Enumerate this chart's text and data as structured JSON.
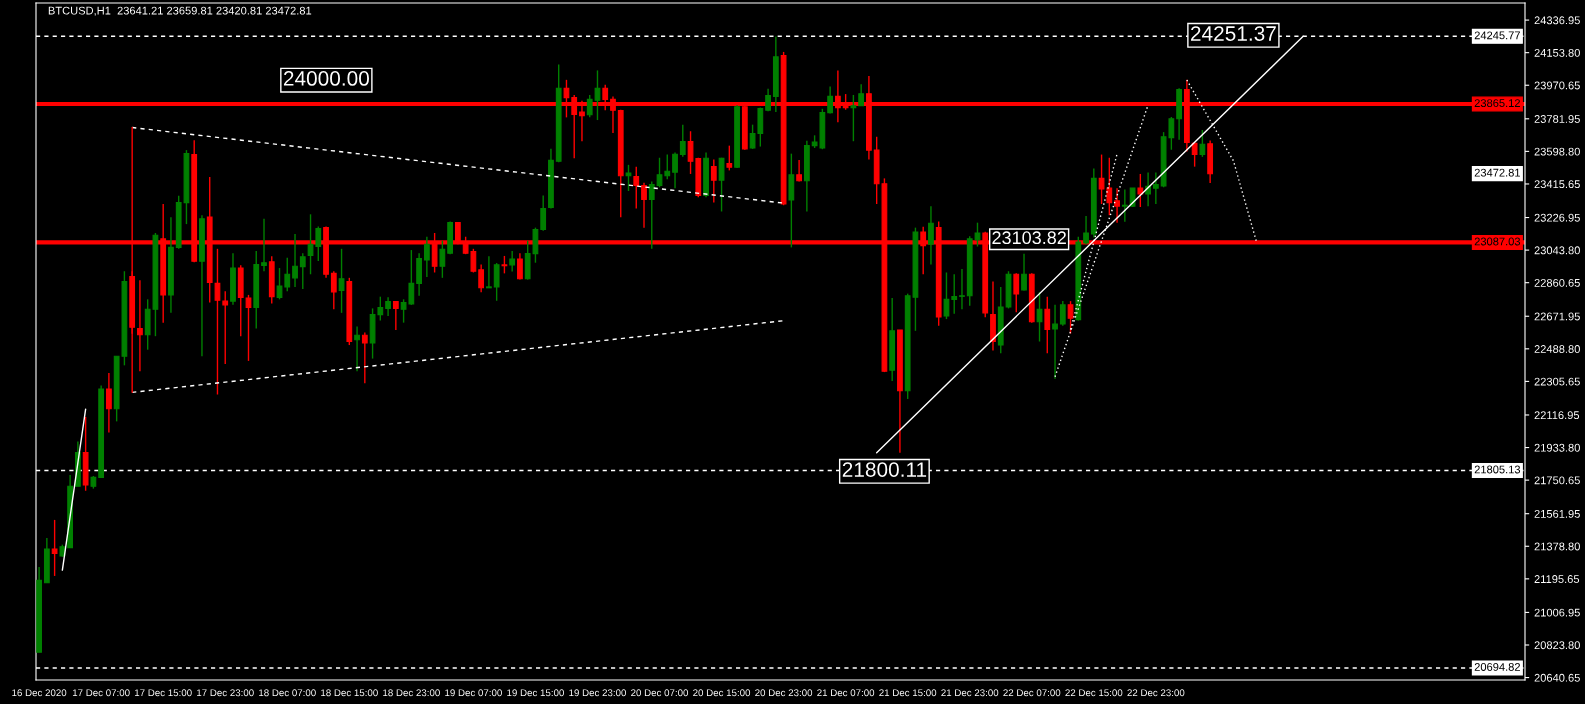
{
  "chart_data": {
    "type": "candlestick",
    "title": "BTCUSD,H1  23641.21 23659.81 23420.81 23472.81",
    "colors": [
      "#008000",
      "#008000",
      "#ff0000",
      "#008000",
      "#008000",
      "#008000",
      "#ff0000",
      "#008000",
      "#008000",
      "#ff0000",
      "#008000",
      "#008000",
      "#ff0000",
      "#ff0000",
      "#008000",
      "#008000",
      "#ff0000",
      "#008000",
      "#008000",
      "#008000",
      "#ff0000",
      "#008000",
      "#ff0000",
      "#ff0000",
      "#ff0000",
      "#008000",
      "#ff0000",
      "#ff0000",
      "#008000",
      "#008000",
      "#ff0000",
      "#008000",
      "#008000",
      "#008000",
      "#008000",
      "#008000",
      "#008000",
      "#ff0000",
      "#ff0000",
      "#008000",
      "#ff0000",
      "#008000",
      "#ff0000",
      "#008000",
      "#008000",
      "#008000",
      "#ff0000",
      "#008000",
      "#008000",
      "#008000",
      "#008000",
      "#ff0000",
      "#008000",
      "#008000",
      "#ff0000",
      "#ff0000",
      "#ff0000",
      "#ff0000",
      "#008000",
      "#008000",
      "#ff0000",
      "#008000",
      "#ff0000",
      "#008000",
      "#008000",
      "#008000",
      "#008000",
      "#008000",
      "#ff0000",
      "#ff0000",
      "#ff0000",
      "#008000",
      "#008000",
      "#ff0000",
      "#ff0000",
      "#ff0000",
      "#008000",
      "#ff0000",
      "#ff0000",
      "#008000",
      "#008000",
      "#008000",
      "#008000",
      "#008000",
      "#ff0000",
      "#ff0000",
      "#008000",
      "#ff0000",
      "#008000",
      "#ff0000",
      "#008000",
      "#ff0000",
      "#008000",
      "#008000",
      "#008000",
      "#008000",
      "#ff0000",
      "#008000",
      "#ff0000",
      "#008000",
      "#008000",
      "#008000",
      "#008000",
      "#ff0000",
      "#ff0000",
      "#008000",
      "#008000",
      "#ff0000",
      "#ff0000",
      "#ff0000",
      "#008000",
      "#ff0000",
      "#008000",
      "#008000",
      "#ff0000",
      "#008000",
      "#ff0000",
      "#008000",
      "#008000",
      "#008000",
      "#008000",
      "#008000",
      "#ff0000",
      "#ff0000",
      "#008000",
      "#008000",
      "#ff0000",
      "#008000",
      "#ff0000",
      "#008000",
      "#ff0000",
      "#008000",
      "#008000",
      "#ff0000",
      "#008000",
      "#008000",
      "#008000",
      "#ff0000",
      "#ff0000",
      "#ff0000",
      "#008000",
      "#008000",
      "#ff0000",
      "#008000",
      "#008000",
      "#008000",
      "#008000",
      "#008000",
      "#ff0000",
      "#ff0000",
      "#008000",
      "#ff0000"
    ],
    "x": [
      "2020-12-16T23:00",
      "2020-12-17T00:00",
      "2020-12-17T01:00",
      "2020-12-17T02:00",
      "2020-12-17T03:00",
      "2020-12-17T04:00",
      "2020-12-17T05:00",
      "2020-12-17T06:00",
      "2020-12-17T07:00",
      "2020-12-17T08:00",
      "2020-12-17T09:00",
      "2020-12-17T10:00",
      "2020-12-17T11:00",
      "2020-12-17T12:00",
      "2020-12-17T13:00",
      "2020-12-17T14:00",
      "2020-12-17T15:00",
      "2020-12-17T16:00",
      "2020-12-17T17:00",
      "2020-12-17T18:00",
      "2020-12-17T19:00",
      "2020-12-17T20:00",
      "2020-12-17T21:00",
      "2020-12-17T22:00",
      "2020-12-17T23:00",
      "2020-12-18T00:00",
      "2020-12-18T01:00",
      "2020-12-18T02:00",
      "2020-12-18T03:00",
      "2020-12-18T04:00",
      "2020-12-18T05:00",
      "2020-12-18T06:00",
      "2020-12-18T07:00",
      "2020-12-18T08:00",
      "2020-12-18T09:00",
      "2020-12-18T10:00",
      "2020-12-18T11:00",
      "2020-12-18T12:00",
      "2020-12-18T13:00",
      "2020-12-18T14:00",
      "2020-12-18T15:00",
      "2020-12-18T16:00",
      "2020-12-18T17:00",
      "2020-12-18T18:00",
      "2020-12-18T19:00",
      "2020-12-18T20:00",
      "2020-12-18T21:00",
      "2020-12-18T22:00",
      "2020-12-18T23:00",
      "2020-12-19T00:00",
      "2020-12-19T01:00",
      "2020-12-19T02:00",
      "2020-12-19T03:00",
      "2020-12-19T04:00",
      "2020-12-19T05:00",
      "2020-12-19T06:00",
      "2020-12-19T07:00",
      "2020-12-19T08:00",
      "2020-12-19T09:00",
      "2020-12-19T10:00",
      "2020-12-19T11:00",
      "2020-12-19T12:00",
      "2020-12-19T13:00",
      "2020-12-19T14:00",
      "2020-12-19T15:00",
      "2020-12-19T16:00",
      "2020-12-19T17:00",
      "2020-12-19T18:00",
      "2020-12-19T19:00",
      "2020-12-19T20:00",
      "2020-12-19T21:00",
      "2020-12-19T22:00",
      "2020-12-19T23:00",
      "2020-12-20T00:00",
      "2020-12-20T01:00",
      "2020-12-20T02:00",
      "2020-12-20T03:00",
      "2020-12-20T04:00",
      "2020-12-20T05:00",
      "2020-12-20T06:00",
      "2020-12-20T07:00",
      "2020-12-20T08:00",
      "2020-12-20T09:00",
      "2020-12-20T10:00",
      "2020-12-20T11:00",
      "2020-12-20T12:00",
      "2020-12-20T13:00",
      "2020-12-20T14:00",
      "2020-12-20T15:00",
      "2020-12-20T16:00",
      "2020-12-20T17:00",
      "2020-12-20T18:00",
      "2020-12-20T19:00",
      "2020-12-20T20:00",
      "2020-12-20T21:00",
      "2020-12-20T22:00",
      "2020-12-20T23:00",
      "2020-12-21T00:00",
      "2020-12-21T01:00",
      "2020-12-21T02:00",
      "2020-12-21T03:00",
      "2020-12-21T04:00",
      "2020-12-21T05:00",
      "2020-12-21T06:00",
      "2020-12-21T07:00",
      "2020-12-21T08:00",
      "2020-12-21T09:00",
      "2020-12-21T10:00",
      "2020-12-21T11:00",
      "2020-12-21T12:00",
      "2020-12-21T13:00",
      "2020-12-21T14:00",
      "2020-12-21T15:00",
      "2020-12-21T16:00",
      "2020-12-21T17:00",
      "2020-12-21T18:00",
      "2020-12-21T19:00",
      "2020-12-21T20:00",
      "2020-12-21T21:00",
      "2020-12-21T22:00",
      "2020-12-21T23:00",
      "2020-12-22T00:00",
      "2020-12-22T01:00",
      "2020-12-22T02:00",
      "2020-12-22T03:00",
      "2020-12-22T04:00",
      "2020-12-22T05:00",
      "2020-12-22T06:00",
      "2020-12-22T07:00",
      "2020-12-22T08:00",
      "2020-12-22T09:00",
      "2020-12-22T10:00",
      "2020-12-22T11:00",
      "2020-12-22T12:00",
      "2020-12-22T13:00",
      "2020-12-22T14:00",
      "2020-12-22T15:00",
      "2020-12-22T16:00",
      "2020-12-22T17:00",
      "2020-12-22T18:00",
      "2020-12-22T19:00",
      "2020-12-22T20:00",
      "2020-12-22T21:00",
      "2020-12-22T22:00",
      "2020-12-22T23:00",
      "2020-12-23T00:00",
      "2020-12-23T01:00",
      "2020-12-23T02:00",
      "2020-12-23T03:00",
      "2020-12-23T04:00",
      "2020-12-23T05:00",
      "2020-12-23T06:00"
    ],
    "ohlc": [
      [
        20783,
        21262,
        20783,
        21187
      ],
      [
        21174,
        21426,
        21174,
        21363
      ],
      [
        21363,
        21527,
        21212,
        21338
      ],
      [
        21325,
        21388,
        21320,
        21376
      ],
      [
        21371,
        21779,
        21371,
        21716
      ],
      [
        21716,
        21968,
        21716,
        21905
      ],
      [
        21905,
        22106,
        21691,
        21723
      ],
      [
        21716,
        21774,
        21703,
        21766
      ],
      [
        21766,
        22283,
        21766,
        22263
      ],
      [
        22263,
        22353,
        22018,
        22152
      ],
      [
        22152,
        22447,
        22081,
        22447
      ],
      [
        22447,
        22925,
        22396,
        22867
      ],
      [
        22895,
        22925,
        22573,
        22610
      ],
      [
        22603,
        22875,
        22363,
        22568
      ],
      [
        22568,
        22767,
        22484,
        22711
      ],
      [
        22711,
        23140,
        22560,
        23127
      ],
      [
        23107,
        23303,
        22636,
        22792
      ],
      [
        22792,
        23228,
        22691,
        23059
      ],
      [
        23059,
        23349,
        23051,
        23311
      ],
      [
        23311,
        23606,
        23190,
        23586
      ],
      [
        23581,
        23661,
        22976,
        22981
      ],
      [
        22981,
        23240,
        22447,
        23220
      ],
      [
        23230,
        23455,
        22749,
        22862
      ],
      [
        22857,
        23051,
        22232,
        22762
      ],
      [
        22757,
        22812,
        22404,
        22736
      ],
      [
        22757,
        23026,
        22736,
        22943
      ],
      [
        22943,
        22958,
        22560,
        22777
      ],
      [
        22774,
        22792,
        22421,
        22721
      ],
      [
        22721,
        23039,
        22603,
        22963
      ],
      [
        22958,
        23220,
        22925,
        22973
      ],
      [
        22978,
        23009,
        22744,
        22782
      ],
      [
        22777,
        22943,
        22767,
        22842
      ],
      [
        22837,
        23001,
        22812,
        22908
      ],
      [
        22888,
        23135,
        22837,
        22953
      ],
      [
        22951,
        23026,
        22825,
        23006
      ],
      [
        23014,
        23245,
        22908,
        23077
      ],
      [
        23064,
        23177,
        22983,
        23165
      ],
      [
        23170,
        23177,
        22888,
        22908
      ],
      [
        22913,
        22925,
        22711,
        22809
      ],
      [
        22817,
        23051,
        22691,
        22883
      ],
      [
        22867,
        22888,
        22510,
        22530
      ],
      [
        22540,
        22615,
        22363,
        22565
      ],
      [
        22565,
        22580,
        22295,
        22522
      ],
      [
        22522,
        22716,
        22434,
        22681
      ],
      [
        22681,
        22782,
        22648,
        22721
      ],
      [
        22716,
        22779,
        22673,
        22754
      ],
      [
        22754,
        22757,
        22595,
        22716
      ],
      [
        22711,
        22767,
        22636,
        22749
      ],
      [
        22741,
        23044,
        22736,
        22857
      ],
      [
        22857,
        23026,
        22787,
        22996
      ],
      [
        22988,
        23119,
        22893,
        23077
      ],
      [
        23084,
        23140,
        22918,
        22953
      ],
      [
        22953,
        23097,
        22888,
        23049
      ],
      [
        23026,
        23205,
        23021,
        23198
      ],
      [
        23198,
        23198,
        23077,
        23089
      ],
      [
        23089,
        23119,
        23021,
        23026
      ],
      [
        23036,
        23051,
        22918,
        22925
      ],
      [
        22933,
        22963,
        22807,
        22832
      ],
      [
        22832,
        23009,
        22832,
        22837
      ],
      [
        22837,
        22971,
        22759,
        22961
      ],
      [
        22961,
        23011,
        22913,
        22956
      ],
      [
        22961,
        23039,
        22923,
        22993
      ],
      [
        22993,
        23026,
        22878,
        22883
      ],
      [
        22883,
        23097,
        22878,
        23024
      ],
      [
        23024,
        23170,
        22973,
        23160
      ],
      [
        23160,
        23351,
        23152,
        23278
      ],
      [
        23283,
        23613,
        23278,
        23548
      ],
      [
        23543,
        24087,
        23538,
        23954
      ],
      [
        23954,
        24001,
        23790,
        23901
      ],
      [
        23901,
        23916,
        23560,
        23807
      ],
      [
        23820,
        23883,
        23656,
        23800
      ],
      [
        23805,
        23916,
        23790,
        23891
      ],
      [
        23886,
        24054,
        23775,
        23954
      ],
      [
        23954,
        23974,
        23830,
        23891
      ],
      [
        23891,
        23908,
        23702,
        23830
      ],
      [
        23828,
        23833,
        23228,
        23462
      ],
      [
        23462,
        23523,
        23376,
        23477
      ],
      [
        23457,
        23513,
        23278,
        23407
      ],
      [
        23407,
        23422,
        23170,
        23329
      ],
      [
        23329,
        23429,
        23051,
        23412
      ],
      [
        23407,
        23563,
        23397,
        23467
      ],
      [
        23462,
        23581,
        23442,
        23487
      ],
      [
        23482,
        23593,
        23392,
        23583
      ],
      [
        23581,
        23749,
        23568,
        23654
      ],
      [
        23654,
        23712,
        23472,
        23543
      ],
      [
        23558,
        23563,
        23341,
        23351
      ],
      [
        23351,
        23593,
        23341,
        23560
      ],
      [
        23513,
        23553,
        23311,
        23437
      ],
      [
        23437,
        23563,
        23261,
        23560
      ],
      [
        23530,
        23631,
        23492,
        23510
      ],
      [
        23510,
        23858,
        23505,
        23850
      ],
      [
        23850,
        23855,
        23608,
        23613
      ],
      [
        23618,
        23749,
        23613,
        23699
      ],
      [
        23699,
        23845,
        23626,
        23840
      ],
      [
        23830,
        23951,
        23825,
        23913
      ],
      [
        23908,
        24245,
        23820,
        24130
      ],
      [
        24138,
        24158,
        23296,
        23303
      ],
      [
        23326,
        23586,
        23059,
        23467
      ],
      [
        23467,
        23550,
        23429,
        23434
      ],
      [
        23434,
        23659,
        23261,
        23631
      ],
      [
        23631,
        23689,
        23618,
        23651
      ],
      [
        23618,
        23838,
        23611,
        23817
      ],
      [
        23817,
        23964,
        23812,
        23908
      ],
      [
        23908,
        24054,
        23762,
        23845
      ],
      [
        23855,
        23921,
        23833,
        23845
      ],
      [
        23845,
        23916,
        23656,
        23855
      ],
      [
        23855,
        23976,
        23855,
        23923
      ],
      [
        23923,
        24022,
        23553,
        23606
      ],
      [
        23606,
        23681,
        23303,
        23417
      ],
      [
        23417,
        23447,
        22358,
        22363
      ],
      [
        22368,
        22774,
        22308,
        22590
      ],
      [
        22595,
        22595,
        21905,
        22253
      ],
      [
        22253,
        22799,
        22207,
        22787
      ],
      [
        22779,
        23170,
        22590,
        23145
      ],
      [
        23145,
        23175,
        22908,
        23069
      ],
      [
        23077,
        23291,
        22963,
        23195
      ],
      [
        23170,
        23205,
        22618,
        22668
      ],
      [
        22673,
        22918,
        22656,
        22767
      ],
      [
        22767,
        22908,
        22686,
        22782
      ],
      [
        22784,
        22938,
        22711,
        22787
      ],
      [
        22787,
        23122,
        22731,
        23107
      ],
      [
        23102,
        23198,
        23064,
        23140
      ],
      [
        23140,
        23147,
        22666,
        22691
      ],
      [
        22681,
        22867,
        22479,
        22530
      ],
      [
        22510,
        22837,
        22464,
        22724
      ],
      [
        22724,
        22925,
        22716,
        22908
      ],
      [
        22908,
        22913,
        22694,
        22797
      ],
      [
        22820,
        23024,
        22817,
        22908
      ],
      [
        22908,
        22913,
        22636,
        22641
      ],
      [
        22641,
        22807,
        22530,
        22711
      ],
      [
        22711,
        22782,
        22464,
        22598
      ],
      [
        22600,
        22736,
        22321,
        22628
      ],
      [
        22628,
        22757,
        22618,
        22736
      ],
      [
        22736,
        22757,
        22575,
        22661
      ],
      [
        22653,
        23119,
        22648,
        23089
      ],
      [
        23084,
        23235,
        23077,
        23140
      ],
      [
        23135,
        23502,
        23114,
        23447
      ],
      [
        23447,
        23581,
        23303,
        23387
      ],
      [
        23392,
        23563,
        23240,
        23311
      ],
      [
        23321,
        23392,
        23198,
        23291
      ],
      [
        23291,
        23384,
        23203,
        23296
      ],
      [
        23291,
        23392,
        23286,
        23392
      ],
      [
        23392,
        23472,
        23286,
        23359
      ],
      [
        23359,
        23480,
        23291,
        23402
      ],
      [
        23392,
        23480,
        23303,
        23412
      ],
      [
        23404,
        23707,
        23397,
        23681
      ],
      [
        23676,
        23792,
        23608,
        23782
      ],
      [
        23782,
        23954,
        23664,
        23946
      ],
      [
        23946,
        24001,
        23598,
        23649
      ],
      [
        23644,
        23649,
        23513,
        23581
      ],
      [
        23581,
        23719,
        23568,
        23639
      ],
      [
        23641.21,
        23659.81,
        23420.81,
        23472.81
      ]
    ],
    "series": [
      {
        "type": "line",
        "color": "#ffffff",
        "line_style": "solid",
        "x": [
          "2020-12-21T11:00",
          "2020-12-23T18:00"
        ],
        "values": [
          21905,
          24246
        ]
      },
      {
        "type": "line",
        "color": "#ffffff",
        "line_style": "dashed",
        "x": [
          "2020-12-17T11:00",
          "2020-12-20T23:00"
        ],
        "values": [
          23733,
          23308
        ]
      },
      {
        "type": "line",
        "color": "#ffffff",
        "line_style": "dashed",
        "x": [
          "2020-12-17T11:00",
          "2020-12-20T23:00"
        ],
        "values": [
          22244,
          22647
        ]
      },
      {
        "type": "line",
        "color": "#ff0000",
        "line_style": "solid",
        "x": [
          "2020-12-17T11:00",
          "2020-12-17T11:00"
        ],
        "values": [
          22244,
          23733
        ]
      },
      {
        "type": "line",
        "color": "#ffffff",
        "line_style": "dotted",
        "x": [
          "2020-12-22T10:00",
          "2020-12-22T22:00"
        ],
        "values": [
          22332,
          23860
        ]
      },
      {
        "type": "line",
        "color": "#ffffff",
        "line_style": "dotted",
        "x": [
          "2020-12-22T12:00",
          "2020-12-22T18:00"
        ],
        "values": [
          22597,
          23584
        ]
      },
      {
        "type": "line",
        "color": "#ffffff",
        "line_style": "dotted",
        "x": [
          "2020-12-23T03:00",
          "2020-12-23T09:00",
          "2020-12-23T12:00"
        ],
        "values": [
          24000,
          23546,
          23087
        ]
      },
      {
        "type": "line",
        "color": "#ffffff",
        "line_style": "solid",
        "x": [
          "2020-12-17T02:00",
          "2020-12-17T05:00"
        ],
        "values": [
          21245,
          22150
        ]
      }
    ],
    "ref_lines": [
      {
        "axis": "y",
        "value": 24245.77,
        "label": "24245.77",
        "color": "#ffffff",
        "line_style": "dashed"
      },
      {
        "axis": "y",
        "value": 23865.12,
        "label": "23865.12",
        "color": "#ff0000",
        "line_style": "solid"
      },
      {
        "axis": "y",
        "value": 23087.03,
        "label": "23087.03",
        "color": "#ff0000",
        "line_style": "solid"
      },
      {
        "axis": "y",
        "value": 21805.13,
        "label": "21805.13",
        "color": "#ffffff",
        "line_style": "dashed"
      },
      {
        "axis": "y",
        "value": 20694.82,
        "label": "20694.82",
        "color": "#ffffff",
        "line_style": "dashed"
      }
    ],
    "annotations": [
      "24000.00",
      {
        "text": "24251.37",
        "x": "2020-12-23T09:00",
        "y": 24251.37
      },
      "23103.82",
      {
        "text": "21800.11",
        "x": "2020-12-21T12:00",
        "y": 21800.11
      },
      "23472.81"
    ],
    "xlim": [
      "2020-12-16T22:36",
      "2020-12-24T22:36"
    ],
    "xticks": [
      {
        "value": "2020-12-16T23:00",
        "label": "16 Dec 2020"
      },
      {
        "value": "2020-12-17T07:00",
        "label": "17 Dec 07:00"
      },
      {
        "value": "2020-12-17T15:00",
        "label": "17 Dec 15:00"
      },
      {
        "value": "2020-12-17T23:00",
        "label": "17 Dec 23:00"
      },
      {
        "value": "2020-12-18T07:00",
        "label": "18 Dec 07:00"
      },
      {
        "value": "2020-12-18T15:00",
        "label": "18 Dec 15:00"
      },
      {
        "value": "2020-12-18T23:00",
        "label": "18 Dec 23:00"
      },
      {
        "value": "2020-12-19T07:00",
        "label": "19 Dec 07:00"
      },
      {
        "value": "2020-12-19T15:00",
        "label": "19 Dec 15:00"
      },
      {
        "value": "2020-12-19T23:00",
        "label": "19 Dec 23:00"
      },
      {
        "value": "2020-12-20T07:00",
        "label": "20 Dec 07:00"
      },
      {
        "value": "2020-12-20T15:00",
        "label": "20 Dec 15:00"
      },
      {
        "value": "2020-12-20T23:00",
        "label": "20 Dec 23:00"
      },
      {
        "value": "2020-12-21T07:00",
        "label": "21 Dec 07:00"
      },
      {
        "value": "2020-12-21T15:00",
        "label": "21 Dec 15:00"
      },
      {
        "value": "2020-12-21T23:00",
        "label": "21 Dec 23:00"
      },
      {
        "value": "2020-12-22T07:00",
        "label": "22 Dec 07:00"
      },
      {
        "value": "2020-12-22T15:00",
        "label": "22 Dec 15:00"
      },
      {
        "value": "2020-12-22T23:00",
        "label": "22 Dec 23:00"
      }
    ],
    "ylim": [
      20627,
      24433
    ],
    "yticks": [
      24336.95,
      {
        "value": 24153.8,
        "label": "24153.80"
      },
      23970.65,
      23781.95,
      {
        "value": 23598.8,
        "label": "23598.80"
      },
      23415.65,
      23226.95,
      {
        "value": 23043.8,
        "label": "23043.80"
      },
      22860.65,
      22671.95,
      {
        "value": 22488.8,
        "label": "22488.80"
      },
      22305.65,
      22116.95,
      {
        "value": 21933.8,
        "label": "21933.80"
      },
      21750.65,
      21561.95,
      {
        "value": 21378.8,
        "label": "21378.80"
      },
      21195.65,
      21006.95,
      {
        "value": 20823.8,
        "label": "20823.80"
      },
      20640.65
    ],
    "grid": false,
    "legend": false
  }
}
